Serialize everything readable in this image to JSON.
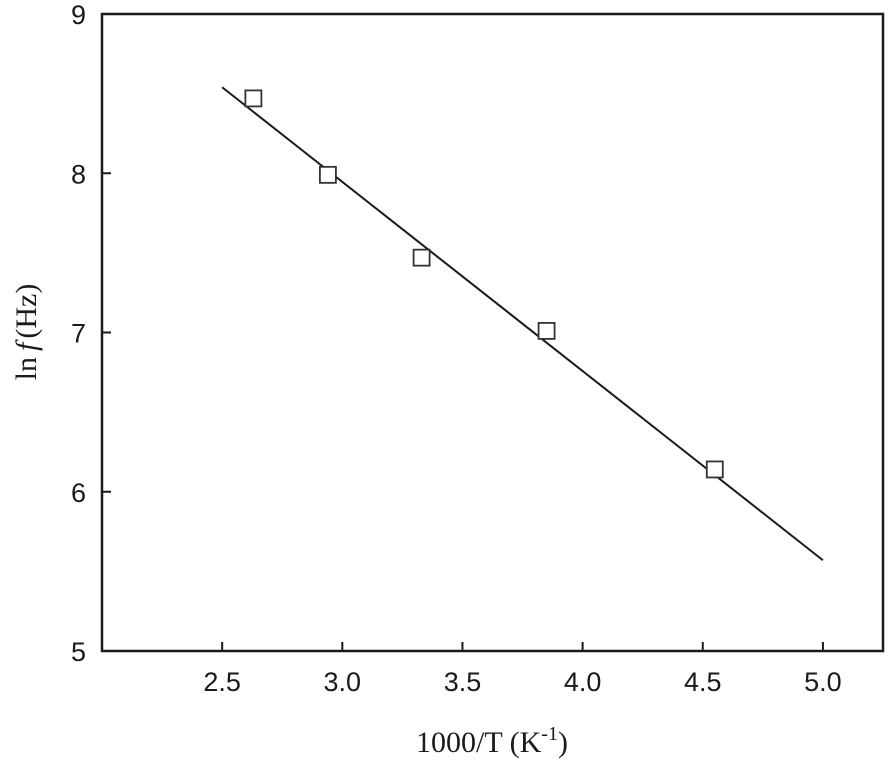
{
  "chart_data": {
    "type": "scatter",
    "title": "",
    "xlabel": "1000/T (K",
    "xlabel_sup": "-1",
    "xlabel_close": ")",
    "ylabel_prefix": "ln",
    "ylabel_italic": "f",
    "ylabel_suffix": "(Hz)",
    "xlim": [
      2.0,
      5.25
    ],
    "ylim": [
      5,
      9
    ],
    "x_ticks": [
      2.5,
      3.0,
      3.5,
      4.0,
      4.5,
      5.0
    ],
    "x_tick_labels": [
      "2.5",
      "3.0",
      "3.5",
      "4.0",
      "4.5",
      "5.0"
    ],
    "y_ticks": [
      5,
      6,
      7,
      8,
      9
    ],
    "y_tick_labels": [
      "5",
      "6",
      "7",
      "8",
      "9"
    ],
    "grid": false,
    "series": [
      {
        "marker": "open-square",
        "points": [
          {
            "x": 2.63,
            "y": 8.47
          },
          {
            "x": 2.94,
            "y": 7.99
          },
          {
            "x": 3.33,
            "y": 7.47
          },
          {
            "x": 3.85,
            "y": 7.01
          },
          {
            "x": 4.55,
            "y": 6.14
          }
        ]
      }
    ],
    "fit_line": {
      "x": [
        2.5,
        5.0
      ],
      "y": [
        8.54,
        5.57
      ]
    }
  }
}
